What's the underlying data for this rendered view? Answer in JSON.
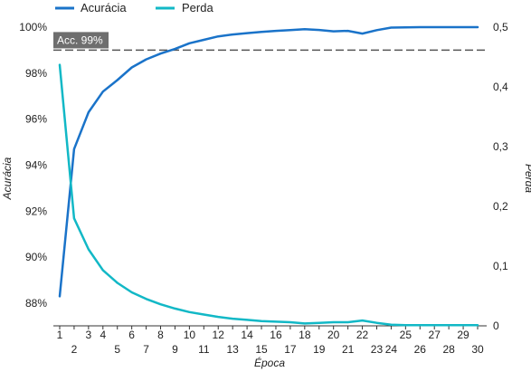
{
  "chart_data": {
    "type": "line",
    "xlabel": "Época",
    "ylabel_left": "Acurácia",
    "ylabel_right": "Perda",
    "x": [
      1,
      2,
      3,
      4,
      5,
      6,
      7,
      8,
      9,
      10,
      11,
      12,
      13,
      14,
      15,
      16,
      17,
      18,
      19,
      20,
      21,
      22,
      23,
      24,
      25,
      26,
      27,
      28,
      29,
      30
    ],
    "x_ticks_bottom": [
      1,
      3,
      4,
      6,
      8,
      10,
      12,
      14,
      16,
      18,
      20,
      22,
      25,
      27,
      29
    ],
    "x_ticks_top": [
      2,
      5,
      7,
      9,
      11,
      13,
      15,
      17,
      19,
      21,
      23,
      24,
      26,
      28,
      30
    ],
    "ylim_left": [
      87,
      100
    ],
    "ylim_right": [
      0,
      0.5
    ],
    "yticks_left": [
      {
        "value": 88,
        "label": "88%"
      },
      {
        "value": 90,
        "label": "90%"
      },
      {
        "value": 92,
        "label": "92%"
      },
      {
        "value": 94,
        "label": "94%"
      },
      {
        "value": 96,
        "label": "96%"
      },
      {
        "value": 98,
        "label": "98%"
      },
      {
        "value": 100,
        "label": "100%"
      }
    ],
    "yticks_right": [
      {
        "value": 0,
        "label": "0"
      },
      {
        "value": 0.1,
        "label": "0,1"
      },
      {
        "value": 0.2,
        "label": "0,2"
      },
      {
        "value": 0.3,
        "label": "0,3"
      },
      {
        "value": 0.4,
        "label": "0,4"
      },
      {
        "value": 0.5,
        "label": "0,5"
      }
    ],
    "reference_line": {
      "value": 99,
      "axis": "left",
      "label": "Acc. 99%",
      "style": "dashed"
    },
    "series": [
      {
        "name": "Acurácia",
        "axis": "left",
        "color": "#1a73c9",
        "values": [
          88.3,
          94.7,
          96.3,
          97.2,
          97.7,
          98.25,
          98.6,
          98.85,
          99.05,
          99.3,
          99.45,
          99.6,
          99.68,
          99.74,
          99.79,
          99.84,
          99.87,
          99.91,
          99.88,
          99.82,
          99.84,
          99.72,
          99.87,
          99.98,
          99.99,
          100,
          100,
          100,
          100,
          100
        ]
      },
      {
        "name": "Perda",
        "axis": "right",
        "color": "#12b8c6",
        "values": [
          0.437,
          0.18,
          0.128,
          0.093,
          0.072,
          0.056,
          0.045,
          0.036,
          0.029,
          0.023,
          0.019,
          0.015,
          0.012,
          0.01,
          0.008,
          0.007,
          0.006,
          0.004,
          0.005,
          0.006,
          0.006,
          0.009,
          0.005,
          0.002,
          0.001,
          0.001,
          0.001,
          0.001,
          0.001,
          0.001
        ]
      }
    ],
    "legend_position": "top-left",
    "grid": false
  }
}
